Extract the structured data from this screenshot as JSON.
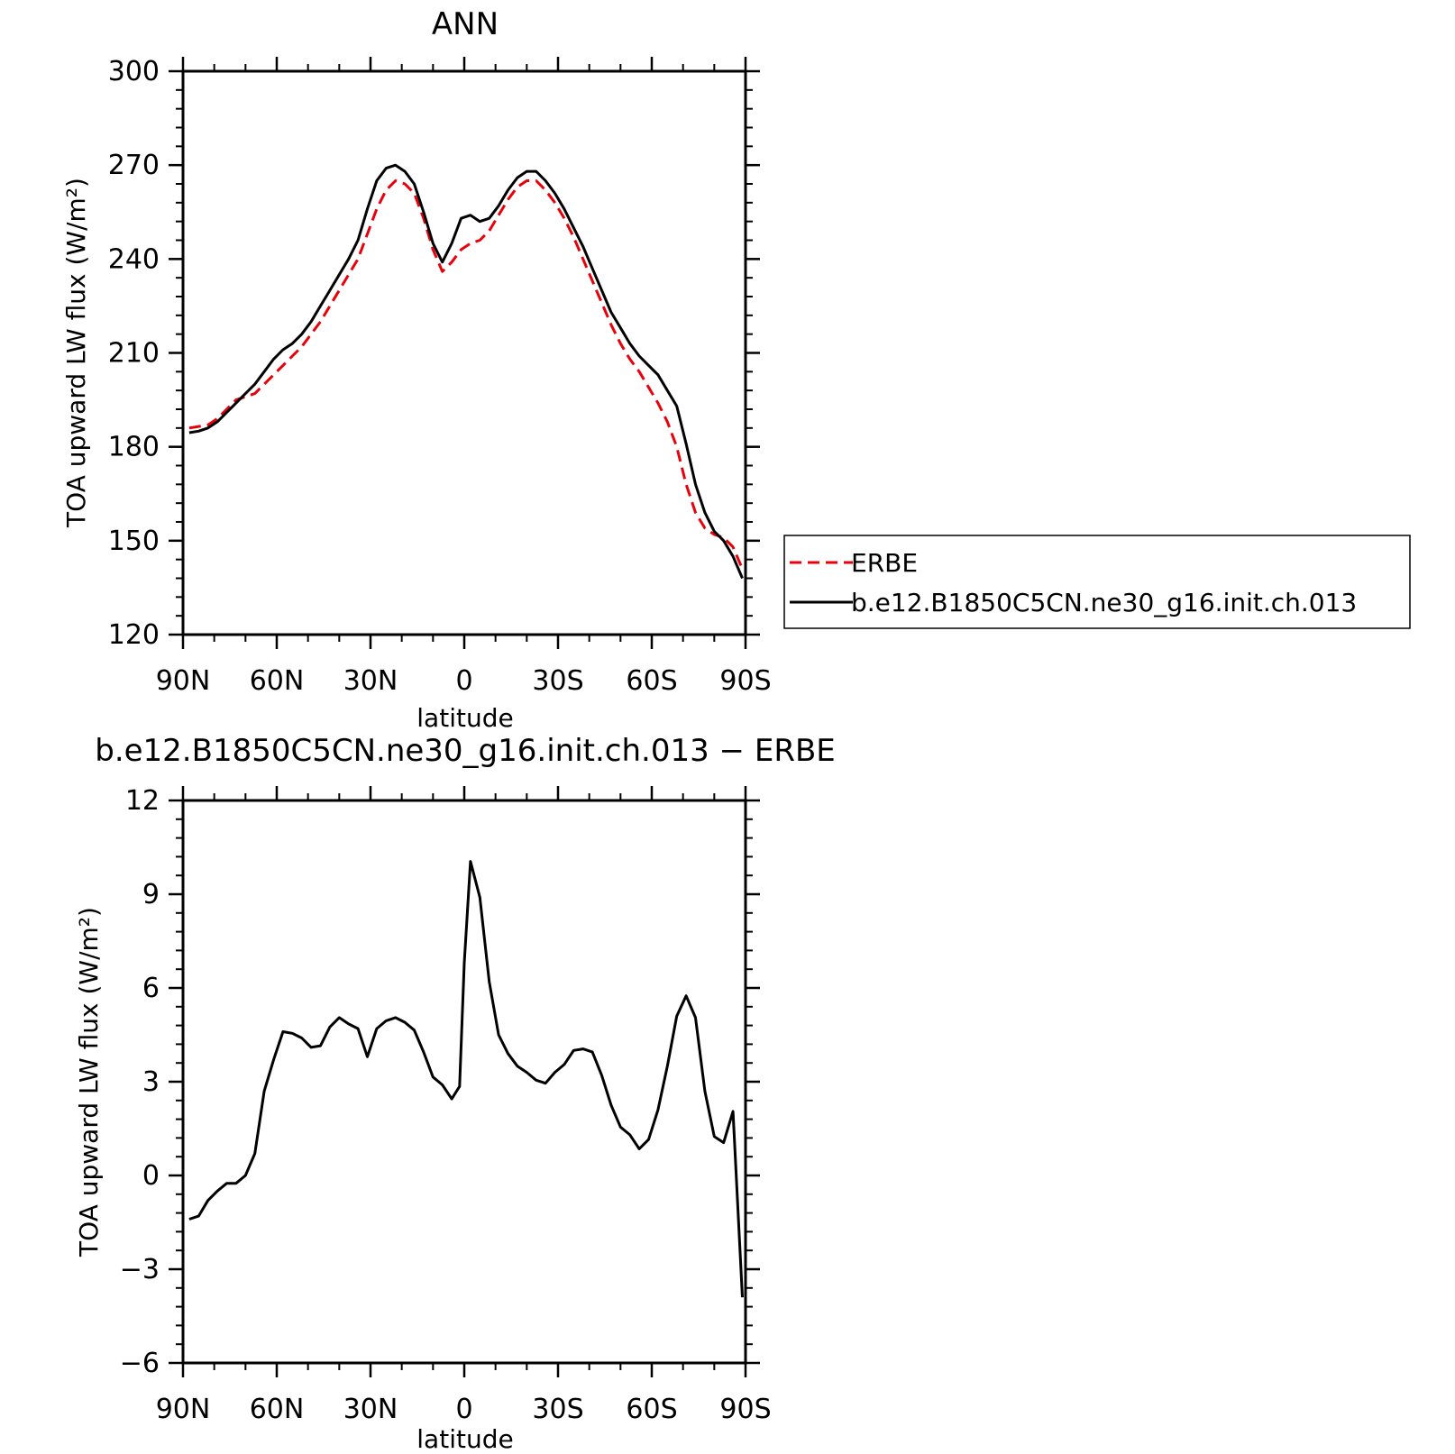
{
  "chart_data": [
    {
      "type": "line",
      "title": "ANN",
      "xlabel": "latitude",
      "ylabel": "TOA upward LW flux (W/m²)",
      "xlim": [
        90,
        -90
      ],
      "ylim": [
        120,
        300
      ],
      "xtick_values": [
        90,
        60,
        30,
        0,
        -30,
        -60,
        -90
      ],
      "xtick_labels": [
        "90N",
        "60N",
        "30N",
        "0",
        "30S",
        "60S",
        "90S"
      ],
      "ytick_values": [
        120,
        150,
        180,
        210,
        240,
        270,
        300
      ],
      "ytick_labels": [
        "120",
        "150",
        "180",
        "210",
        "240",
        "270",
        "300"
      ],
      "legend": "outside-right",
      "series": [
        {
          "name": "ERBE",
          "color": "#e8000b",
          "dash": "dashed",
          "x": [
            88,
            85,
            82,
            79,
            76,
            73,
            70,
            67,
            64,
            61,
            58,
            55,
            52,
            49,
            46,
            43,
            40,
            37,
            34,
            31,
            28,
            25,
            22,
            19,
            16,
            13,
            10,
            7,
            4,
            1,
            -2,
            -5,
            -8,
            -11,
            -14,
            -17,
            -20,
            -23,
            -26,
            -29,
            -32,
            -35,
            -38,
            -41,
            -44,
            -47,
            -50,
            -53,
            -56,
            -59,
            -62,
            -65,
            -68,
            -71,
            -74,
            -77,
            -80,
            -83,
            -86,
            -89
          ],
          "y": [
            186,
            186.5,
            187,
            189,
            192,
            195,
            196,
            197,
            200,
            203,
            206,
            209,
            212,
            216,
            220,
            225,
            230,
            235,
            240,
            248,
            256,
            262,
            265,
            264,
            261,
            253,
            243,
            236,
            239,
            243,
            245,
            246,
            249,
            254,
            259,
            263,
            265,
            265,
            262,
            258,
            253,
            247,
            240,
            233,
            226,
            219,
            213,
            208,
            204,
            199,
            194,
            188,
            180,
            168,
            159,
            154,
            152,
            151,
            148,
            141
          ]
        },
        {
          "name": "b.e12.B1850C5CN.ne30_g16.init.ch.013",
          "color": "#000000",
          "dash": "solid",
          "x": [
            88,
            85,
            82,
            79,
            76,
            73,
            70,
            67,
            64,
            61,
            58,
            55,
            52,
            49,
            46,
            43,
            40,
            37,
            34,
            31,
            28,
            25,
            22,
            19,
            16,
            13,
            10,
            7,
            4,
            1,
            -2,
            -5,
            -8,
            -11,
            -14,
            -17,
            -20,
            -23,
            -26,
            -29,
            -32,
            -35,
            -38,
            -41,
            -44,
            -47,
            -50,
            -53,
            -56,
            -59,
            -62,
            -65,
            -68,
            -71,
            -74,
            -77,
            -80,
            -83,
            -86,
            -89
          ],
          "y": [
            184.5,
            185,
            186,
            188,
            191,
            194,
            197,
            200,
            204,
            208,
            211,
            213,
            216,
            220,
            225,
            230,
            235,
            240,
            246,
            256,
            265,
            269,
            270,
            268,
            264,
            255,
            245,
            239,
            245,
            253,
            254,
            252,
            253,
            257,
            262,
            266,
            268,
            268,
            265,
            261,
            256,
            250,
            244,
            237,
            230,
            223,
            218,
            213,
            209,
            206,
            203,
            198,
            193,
            181,
            168,
            159,
            153,
            150,
            145,
            138
          ]
        }
      ]
    },
    {
      "type": "line",
      "title": "b.e12.B1850C5CN.ne30_g16.init.ch.013 − ERBE",
      "xlabel": "latitude",
      "ylabel": "TOA upward LW flux (W/m²)",
      "xlim": [
        90,
        -90
      ],
      "ylim": [
        -6,
        12
      ],
      "xtick_values": [
        90,
        60,
        30,
        0,
        -30,
        -60,
        -90
      ],
      "xtick_labels": [
        "90N",
        "60N",
        "30N",
        "0",
        "30S",
        "60S",
        "90S"
      ],
      "ytick_values": [
        -6,
        -3,
        0,
        3,
        6,
        9,
        12
      ],
      "ytick_labels": [
        "−6",
        "−3",
        "0",
        "3",
        "6",
        "9",
        "12"
      ],
      "series": [
        {
          "color": "#000000",
          "dash": "solid",
          "x": [
            88,
            85,
            82,
            79,
            76,
            73,
            70,
            67,
            64,
            61,
            58,
            55,
            52,
            49,
            46,
            43,
            40,
            37,
            34,
            31,
            28,
            25,
            22,
            19,
            16,
            13,
            10,
            7,
            4,
            1.5,
            0,
            -2,
            -5,
            -8,
            -11,
            -14,
            -17,
            -20,
            -23,
            -26,
            -29,
            -32,
            -35,
            -38,
            -41,
            -44,
            -47,
            -50,
            -53,
            -56,
            -59,
            -62,
            -65,
            -68,
            -71,
            -74,
            -77,
            -80,
            -83,
            -86,
            -89
          ],
          "y": [
            -1.4,
            -1.3,
            -0.8,
            -0.5,
            -0.25,
            -0.25,
            0,
            0.7,
            2.7,
            3.7,
            4.6,
            4.55,
            4.4,
            4.1,
            4.15,
            4.75,
            5.05,
            4.85,
            4.7,
            3.8,
            4.7,
            4.95,
            5.05,
            4.9,
            4.65,
            3.95,
            3.15,
            2.9,
            2.45,
            2.85,
            6.8,
            10.05,
            8.9,
            6.2,
            4.5,
            3.9,
            3.5,
            3.3,
            3.05,
            2.95,
            3.3,
            3.55,
            4.0,
            4.05,
            3.95,
            3.2,
            2.25,
            1.55,
            1.3,
            0.85,
            1.15,
            2.1,
            3.5,
            5.1,
            5.75,
            5.05,
            2.7,
            1.25,
            1.05,
            2.05,
            -3.9
          ]
        }
      ]
    }
  ]
}
